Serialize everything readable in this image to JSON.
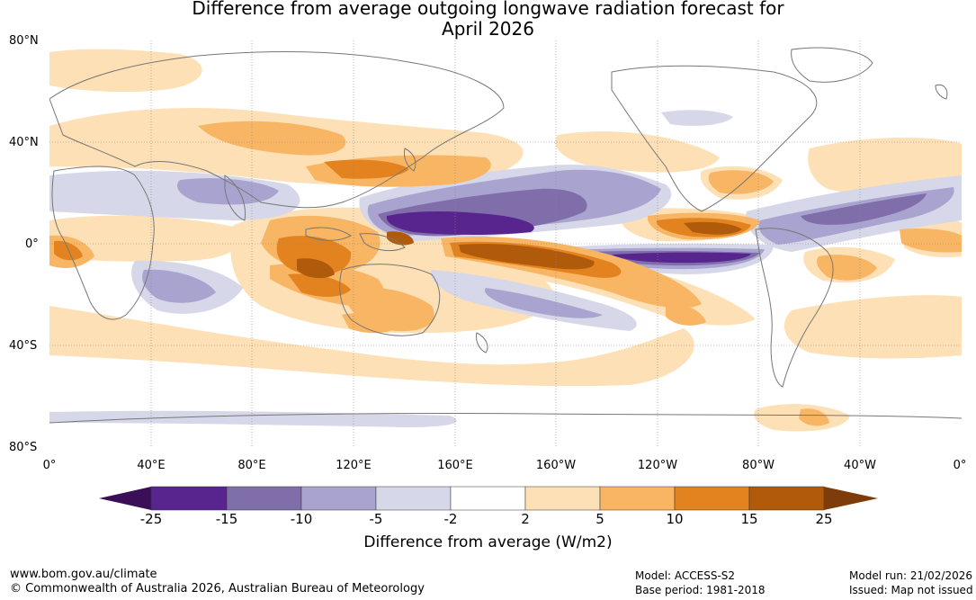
{
  "title": {
    "line1": "Difference from average outgoing longwave radiation forecast for",
    "line2": "April 2026"
  },
  "lat_labels": [
    "80°N",
    "40°N",
    "0°",
    "40°S",
    "80°S"
  ],
  "lon_labels": [
    "0°",
    "40°E",
    "80°E",
    "120°E",
    "160°E",
    "160°W",
    "120°W",
    "80°W",
    "40°W",
    "0°"
  ],
  "colorbar": {
    "title": "Difference from average (W/m2)",
    "ticks": [
      "-25",
      "-15",
      "-10",
      "-5",
      "-2",
      "2",
      "5",
      "10",
      "15",
      "25"
    ],
    "colors": {
      "below_-25": "#3b0f57",
      "-25_-15": "#58258f",
      "-15_-10": "#7f6eaa",
      "-10_-5": "#a9a4cf",
      "-5_-2": "#d7d7ea",
      "-2_2": "#ffffff",
      "2_5": "#fde0b5",
      "5_10": "#f8b563",
      "10_15": "#e28320",
      "15_25": "#b05a0b",
      "above_25": "#7d3c0a"
    }
  },
  "footer": {
    "website": "www.bom.gov.au/climate",
    "copyright": "© Commonwealth of Australia 2026, Australian Bureau of Meteorology",
    "model": "Model: ACCESS-S2",
    "base_period": "Base period: 1981-2018",
    "model_run": "Model run: 21/02/2026",
    "issued": "Issued: Map not issued"
  }
}
